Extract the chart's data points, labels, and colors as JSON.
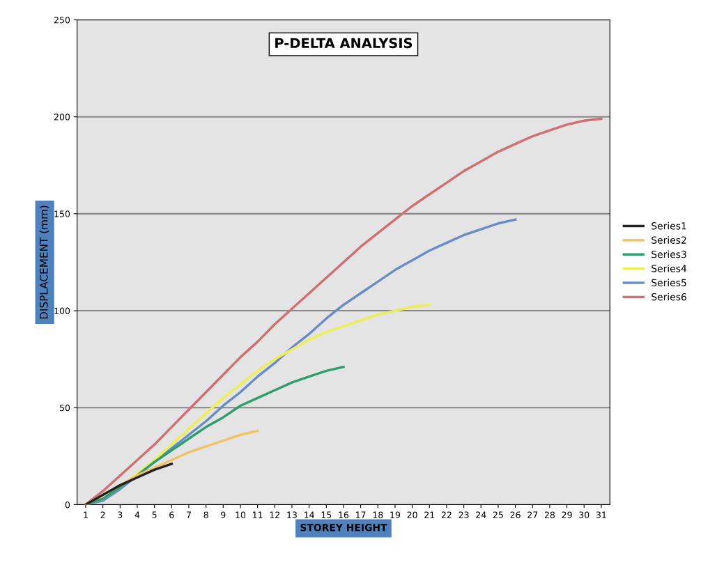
{
  "chart_data": {
    "type": "line",
    "title": "P-DELTA ANALYSIS",
    "xlabel": "STOREY HEIGHT",
    "ylabel": "DISPLACEMENT (mm)",
    "categories": [
      "1",
      "2",
      "3",
      "4",
      "5",
      "6",
      "7",
      "8",
      "9",
      "10",
      "11",
      "12",
      "13",
      "14",
      "15",
      "16",
      "17",
      "18",
      "19",
      "20",
      "21",
      "22",
      "23",
      "24",
      "25",
      "26",
      "27",
      "28",
      "29",
      "30",
      "31"
    ],
    "series": [
      {
        "name": "Series1",
        "color": "#222222",
        "values": [
          0,
          5,
          10,
          14,
          18,
          21,
          null,
          null,
          null,
          null,
          null,
          null,
          null,
          null,
          null,
          null,
          null,
          null,
          null,
          null,
          null,
          null,
          null,
          null,
          null,
          null,
          null,
          null,
          null,
          null,
          null
        ]
      },
      {
        "name": "Series2",
        "color": "#f2c26a",
        "values": [
          0,
          5,
          10,
          15,
          19,
          23,
          27,
          30,
          33,
          36,
          38,
          null,
          null,
          null,
          null,
          null,
          null,
          null,
          null,
          null,
          null,
          null,
          null,
          null,
          null,
          null,
          null,
          null,
          null,
          null,
          null
        ]
      },
      {
        "name": "Series3",
        "color": "#2e9e6e",
        "values": [
          0,
          3,
          9,
          15,
          22,
          28,
          34,
          40,
          45,
          51,
          55,
          59,
          63,
          66,
          69,
          71,
          null,
          null,
          null,
          null,
          null,
          null,
          null,
          null,
          null,
          null,
          null,
          null,
          null,
          null,
          null
        ]
      },
      {
        "name": "Series4",
        "color": "#eeee55",
        "values": [
          0,
          3,
          9,
          16,
          23,
          31,
          39,
          47,
          55,
          62,
          69,
          75,
          80,
          85,
          89,
          92,
          95,
          98,
          100,
          102,
          103,
          null,
          null,
          null,
          null,
          null,
          null,
          null,
          null,
          null,
          null
        ]
      },
      {
        "name": "Series5",
        "color": "#6a8cc8",
        "values": [
          0,
          2,
          8,
          15,
          22,
          29,
          36,
          43,
          51,
          58,
          66,
          73,
          81,
          88,
          96,
          103,
          109,
          115,
          121,
          126,
          131,
          135,
          139,
          142,
          145,
          147,
          null,
          null,
          null,
          null,
          null
        ]
      },
      {
        "name": "Series6",
        "color": "#d07070",
        "values": [
          0,
          7,
          15,
          23,
          31,
          40,
          49,
          58,
          67,
          76,
          84,
          93,
          101,
          109,
          117,
          125,
          133,
          140,
          147,
          154,
          160,
          166,
          172,
          177,
          182,
          186,
          190,
          193,
          196,
          198,
          199
        ]
      }
    ],
    "ylim": [
      0,
      250
    ],
    "yticks": [
      0,
      50,
      100,
      150,
      200,
      250
    ],
    "grid": "y",
    "legend": "right",
    "marker": "none",
    "line_style": "solid"
  }
}
